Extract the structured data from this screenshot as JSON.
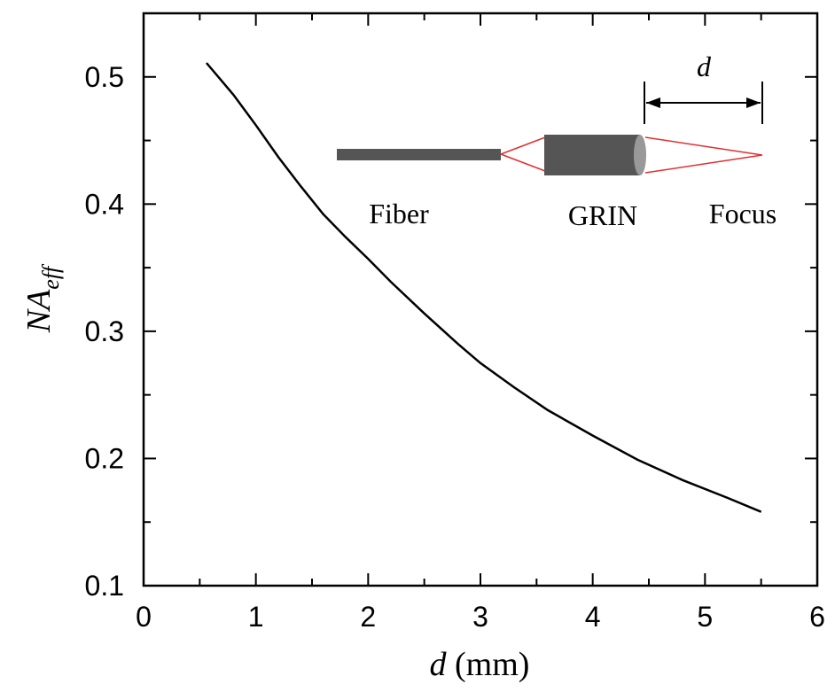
{
  "chart_data": {
    "type": "line",
    "xlabel_var": "d",
    "xlabel_unit": " (mm)",
    "ylabel_main": "NA",
    "ylabel_sub": "eff",
    "xlim": [
      0,
      6
    ],
    "ylim": [
      0.1,
      0.55
    ],
    "xticks": [
      0,
      1,
      2,
      3,
      4,
      5,
      6
    ],
    "yticks": [
      0.1,
      0.2,
      0.3,
      0.4,
      0.5
    ],
    "ytick_labels": [
      "0.1",
      "0.2",
      "0.3",
      "0.4",
      "0.5"
    ],
    "grid": false,
    "series": [
      {
        "x": [
          0.56,
          0.8,
          1.0,
          1.2,
          1.4,
          1.6,
          1.8,
          2.0,
          2.2,
          2.5,
          2.8,
          3.0,
          3.3,
          3.6,
          4.0,
          4.4,
          4.8,
          5.2,
          5.5
        ],
        "y": [
          0.511,
          0.486,
          0.462,
          0.437,
          0.414,
          0.392,
          0.374,
          0.357,
          0.339,
          0.314,
          0.29,
          0.275,
          0.256,
          0.238,
          0.218,
          0.199,
          0.183,
          0.169,
          0.158
        ],
        "color": "#000000"
      }
    ],
    "inset": {
      "labels": {
        "fiber": "Fiber",
        "grin": "GRIN",
        "focus": "Focus",
        "distance": "d"
      },
      "colors": {
        "fiber": "#555555",
        "grin": "#555555",
        "grin_face": "#999999",
        "rays": "#e03030"
      }
    }
  }
}
